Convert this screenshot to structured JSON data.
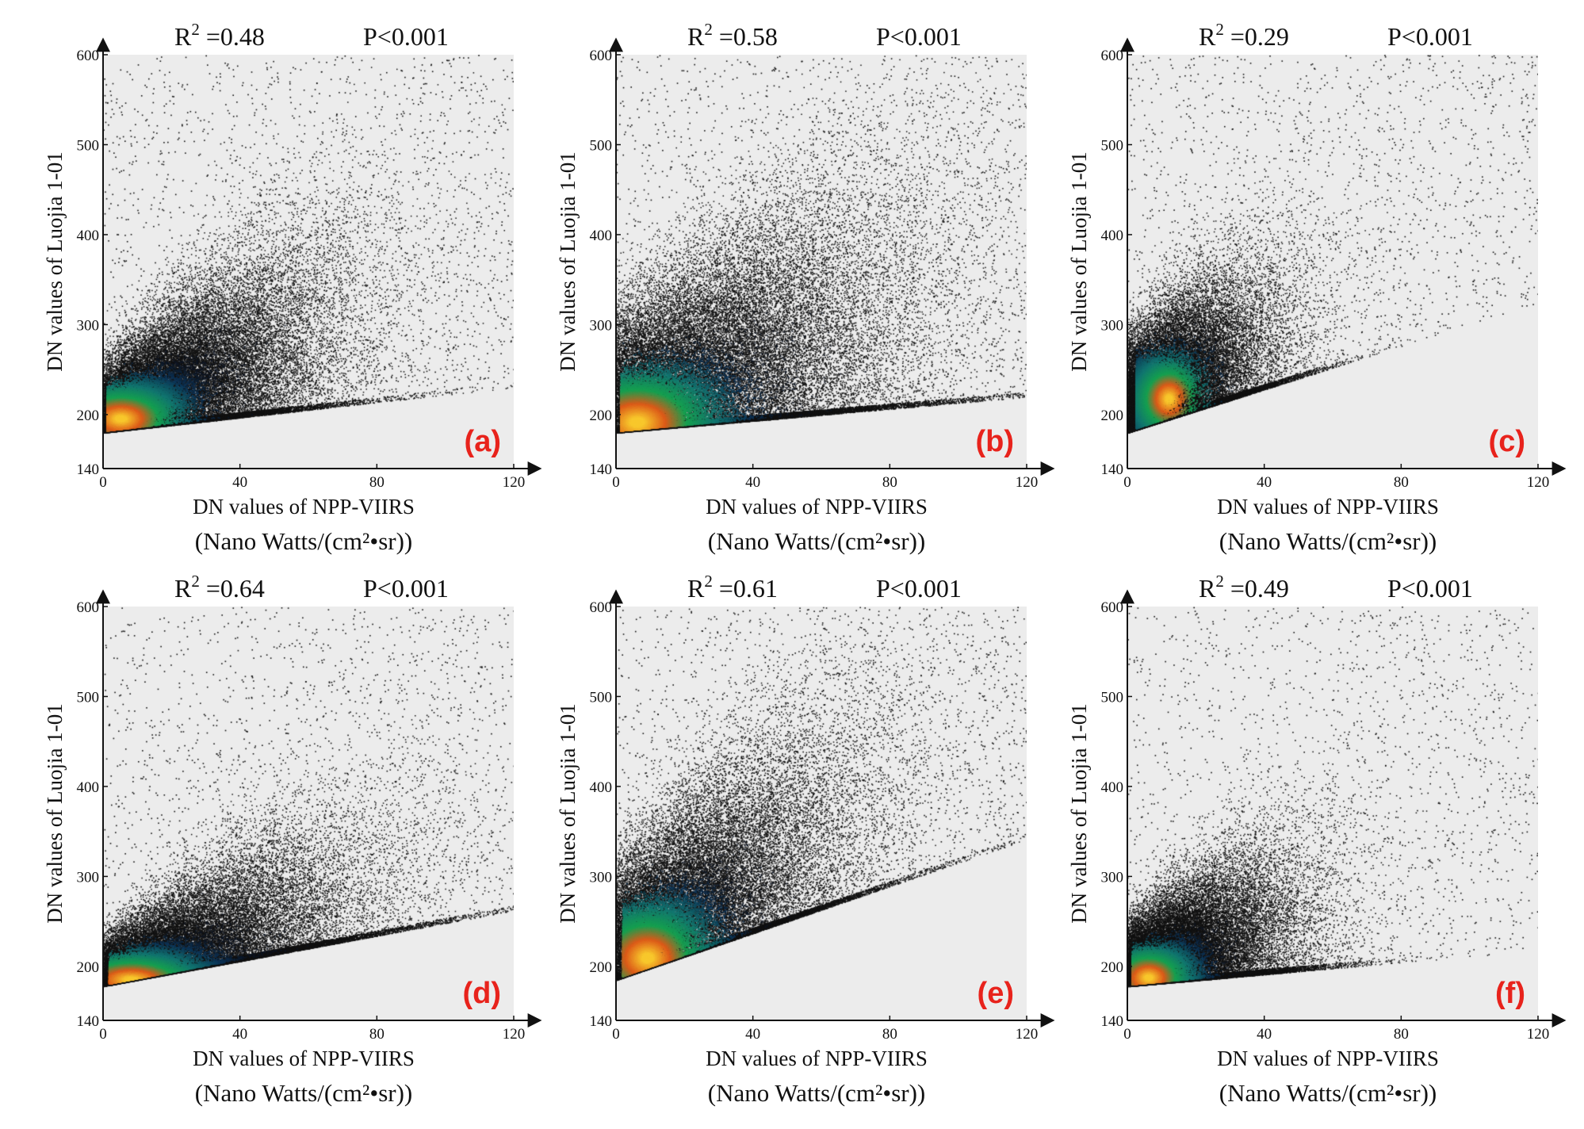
{
  "colors": {
    "plot_background": "#ececec",
    "axis": "#111111",
    "panel_label": "#e8231c",
    "density_low": "#0c2f4d",
    "density_mid": "#15a05a",
    "density_high": "#e6591a",
    "density_peak": "#f5c52c"
  },
  "chart_data": [
    {
      "type": "scatter",
      "panel_label": "(a)",
      "r2_prefix": "R",
      "r2_sup": "2",
      "r2_value": "=0.48",
      "p_text": "P<0.001",
      "xlabel": "DN values of NPP-VIIRS",
      "xunit": "(Nano Watts/(cm²•sr))",
      "ylabel": "DN values of Luojia 1-01",
      "xlim": [
        0,
        120
      ],
      "ylim": [
        140,
        600
      ],
      "xticks": [
        "0",
        "40",
        "80",
        "120"
      ],
      "yticks": [
        "140",
        "200",
        "300",
        "400",
        "500",
        "600"
      ],
      "shape": {
        "floor_intercept": 180,
        "floor_slope": 0.42,
        "center_intercept": 190,
        "center_slope": 2.6,
        "spread": 32,
        "x_spread": 36,
        "core_x": 5,
        "core_y": 196
      }
    },
    {
      "type": "scatter",
      "panel_label": "(b)",
      "r2_prefix": "R",
      "r2_sup": "2",
      "r2_value": "=0.58",
      "p_text": "P<0.001",
      "xlabel": "DN values of NPP-VIIRS",
      "xunit": "(Nano Watts/(cm²•sr))",
      "ylabel": "DN values of Luojia 1-01",
      "xlim": [
        0,
        120
      ],
      "ylim": [
        140,
        600
      ],
      "xticks": [
        "0",
        "40",
        "80",
        "120"
      ],
      "yticks": [
        "140",
        "200",
        "300",
        "400",
        "500",
        "600"
      ],
      "shape": {
        "floor_intercept": 180,
        "floor_slope": 0.33,
        "center_intercept": 200,
        "center_slope": 1.8,
        "spread": 55,
        "x_spread": 48,
        "core_x": 6,
        "core_y": 192
      }
    },
    {
      "type": "scatter",
      "panel_label": "(c)",
      "r2_prefix": "R",
      "r2_sup": "2",
      "r2_value": "=0.29",
      "p_text": "P<0.001",
      "xlabel": "DN values of NPP-VIIRS",
      "xunit": "(Nano Watts/(cm²•sr))",
      "ylabel": "DN values of Luojia 1-01",
      "xlim": [
        0,
        120
      ],
      "ylim": [
        140,
        600
      ],
      "xticks": [
        "0",
        "40",
        "80",
        "120"
      ],
      "yticks": [
        "140",
        "200",
        "300",
        "400",
        "500",
        "600"
      ],
      "shape": {
        "floor_intercept": 180,
        "floor_slope": 1.2,
        "center_intercept": 195,
        "center_slope": 2.8,
        "spread": 40,
        "x_spread": 22,
        "core_x": 12,
        "core_y": 218
      }
    },
    {
      "type": "scatter",
      "panel_label": "(d)",
      "r2_prefix": "R",
      "r2_sup": "2",
      "r2_value": "=0.64",
      "p_text": "P<0.001",
      "xlabel": "DN values of NPP-VIIRS",
      "xunit": "(Nano Watts/(cm²•sr))",
      "ylabel": "DN values of Luojia 1-01",
      "xlim": [
        0,
        120
      ],
      "ylim": [
        140,
        600
      ],
      "xticks": [
        "0",
        "40",
        "80",
        "120"
      ],
      "yticks": [
        "140",
        "200",
        "300",
        "400",
        "500",
        "600"
      ],
      "shape": {
        "floor_intercept": 178,
        "floor_slope": 0.7,
        "center_intercept": 185,
        "center_slope": 1.45,
        "spread": 22,
        "x_spread": 42,
        "core_x": 8,
        "core_y": 186
      }
    },
    {
      "type": "scatter",
      "panel_label": "(e)",
      "r2_prefix": "R",
      "r2_sup": "2",
      "r2_value": "=0.61",
      "p_text": "P<0.001",
      "xlabel": "DN values of NPP-VIIRS",
      "xunit": "(Nano Watts/(cm²•sr))",
      "ylabel": "DN values of Luojia 1-01",
      "xlim": [
        0,
        120
      ],
      "ylim": [
        140,
        600
      ],
      "xticks": [
        "0",
        "40",
        "80",
        "120"
      ],
      "yticks": [
        "140",
        "200",
        "300",
        "400",
        "500",
        "600"
      ],
      "shape": {
        "floor_intercept": 185,
        "floor_slope": 1.3,
        "center_intercept": 200,
        "center_slope": 3.4,
        "spread": 55,
        "x_spread": 38,
        "core_x": 9,
        "core_y": 210
      }
    },
    {
      "type": "scatter",
      "panel_label": "(f)",
      "r2_prefix": "R",
      "r2_sup": "2",
      "r2_value": "=0.49",
      "p_text": "P<0.001",
      "xlabel": "DN values of NPP-VIIRS",
      "xunit": "(Nano Watts/(cm²•sr))",
      "ylabel": "DN values of Luojia 1-01",
      "xlim": [
        0,
        120
      ],
      "ylim": [
        140,
        600
      ],
      "xticks": [
        "0",
        "40",
        "80",
        "120"
      ],
      "yticks": [
        "140",
        "200",
        "300",
        "400",
        "500",
        "600"
      ],
      "shape": {
        "floor_intercept": 178,
        "floor_slope": 0.33,
        "center_intercept": 188,
        "center_slope": 1.7,
        "spread": 28,
        "x_spread": 26,
        "core_x": 6,
        "core_y": 188
      }
    }
  ]
}
